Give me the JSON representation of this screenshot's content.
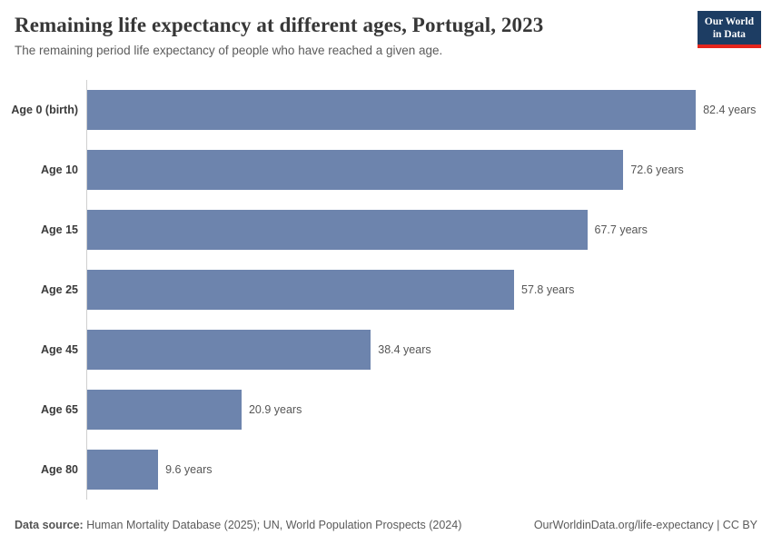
{
  "header": {
    "title": "Remaining life expectancy at different ages, Portugal, 2023",
    "subtitle": "The remaining period life expectancy of people who have reached a given age.",
    "logo": {
      "line1": "Our World",
      "line2": "in Data"
    }
  },
  "chart_data": {
    "type": "bar",
    "orientation": "horizontal",
    "title": "Remaining life expectancy at different ages, Portugal, 2023",
    "categories": [
      "Age 0 (birth)",
      "Age 10",
      "Age 15",
      "Age 25",
      "Age 45",
      "Age 65",
      "Age 80"
    ],
    "values": [
      82.4,
      72.6,
      67.7,
      57.8,
      38.4,
      20.9,
      9.6
    ],
    "value_labels": [
      "82.4 years",
      "72.6 years",
      "67.7 years",
      "57.8 years",
      "38.4 years",
      "20.9 years",
      "9.6 years"
    ],
    "xlabel": "",
    "ylabel": "",
    "xlim": [
      0,
      91
    ],
    "grid": false,
    "legend": "none"
  },
  "footer": {
    "datasource_label": "Data source:",
    "datasource_text": " Human Mortality Database (2025); UN, World Population Prospects (2024)",
    "license_text": "OurWorldinData.org/life-expectancy | CC BY"
  },
  "colors": {
    "bar": "#6d84ad",
    "axis_line": "#cfcfcf",
    "logo_bg": "#1d3d63",
    "logo_accent": "#e5251c",
    "title_text": "#373737"
  }
}
